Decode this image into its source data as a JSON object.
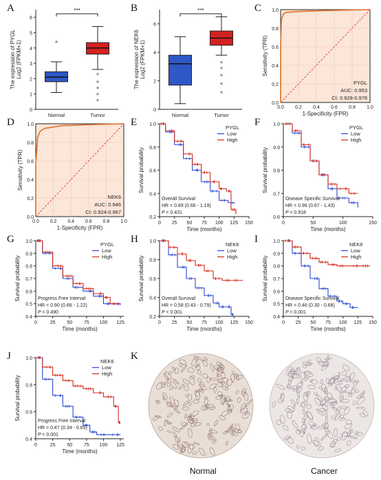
{
  "panel_letters": [
    "A",
    "B",
    "C",
    "D",
    "E",
    "F",
    "G",
    "H",
    "I",
    "J",
    "K"
  ],
  "colors": {
    "normal": "#2f57c6",
    "tumor": "#d42121",
    "roc": "#e07b39",
    "diag": "#e04a4a",
    "roc_bg": "#fbe6d9",
    "low": "#2a46d4",
    "high": "#d42a1a"
  },
  "chart_data": [
    {
      "panel": "A",
      "type": "box",
      "ylabel": "The expression of PYGL",
      "ylabel2": "Log2 (FPKM+1)",
      "categories": [
        "Normal",
        "Tumor"
      ],
      "ylim": [
        0,
        6.5
      ],
      "yticks": [
        "0",
        "1",
        "2",
        "3",
        "4",
        "5",
        "6"
      ],
      "signif": "***",
      "boxes": [
        {
          "q1": 1.8,
          "median": 2.1,
          "q3": 2.45,
          "low": 1.1,
          "high": 3.1,
          "outliers": [
            4.4
          ]
        },
        {
          "q1": 3.6,
          "median": 4.0,
          "q3": 4.35,
          "low": 2.6,
          "high": 5.4,
          "outliers": [
            0.6,
            1.0,
            1.4,
            1.8,
            2.3
          ]
        }
      ]
    },
    {
      "panel": "B",
      "type": "box",
      "ylabel": "The expression of NEK6",
      "ylabel2": "Log2 (FPKM+1)",
      "categories": [
        "Normal",
        "Tumor"
      ],
      "ylim": [
        0,
        7
      ],
      "yticks": [
        "0",
        "2",
        "4",
        "6"
      ],
      "signif": "***",
      "boxes": [
        {
          "q1": 1.7,
          "median": 3.2,
          "q3": 3.8,
          "low": 0.4,
          "high": 5.1,
          "outliers": []
        },
        {
          "q1": 4.5,
          "median": 5.0,
          "q3": 5.5,
          "low": 3.8,
          "high": 6.5,
          "outliers": [
            1.2,
            1.8,
            2.4,
            2.9,
            3.3
          ]
        }
      ]
    },
    {
      "panel": "C",
      "type": "roc",
      "name": "PYGL",
      "auc": "AUC: 0.953",
      "ci": "CI: 0.928-0.978",
      "xlabel": "1-Specificity (FPR)",
      "ylabel": "Sensitivity (TPR)",
      "ticks": [
        "0.0",
        "0.2",
        "0.4",
        "0.6",
        "0.8",
        "1.0"
      ],
      "points": [
        [
          0,
          0
        ],
        [
          0,
          0.6
        ],
        [
          0.01,
          0.9
        ],
        [
          0.03,
          0.95
        ],
        [
          0.06,
          0.97
        ],
        [
          0.2,
          0.98
        ],
        [
          0.5,
          0.99
        ],
        [
          1,
          1
        ]
      ]
    },
    {
      "panel": "D",
      "type": "roc",
      "name": "NEK6",
      "auc": "AUC: 0.946",
      "ci": "CI: 0.924-0.967",
      "xlabel": "1-Specificity (FPR)",
      "ylabel": "Sensitivity (TPR)",
      "ticks": [
        "0.0",
        "0.2",
        "0.4",
        "0.6",
        "0.8",
        "1.0"
      ],
      "points": [
        [
          0,
          0
        ],
        [
          0,
          0.55
        ],
        [
          0.02,
          0.85
        ],
        [
          0.05,
          0.92
        ],
        [
          0.1,
          0.95
        ],
        [
          0.3,
          0.98
        ],
        [
          0.6,
          0.99
        ],
        [
          1,
          1
        ]
      ]
    },
    {
      "panel": "E",
      "type": "km",
      "gene": "PYGL",
      "endpoint": "Overall Survival",
      "hr": "HR = 0.89 (0.66 - 1.19)",
      "p": "0.431",
      "p_prefix": "= ",
      "xlabel": "Time (months)",
      "ylabel": "Survival probability",
      "xmax": 150,
      "ymin": 0.2,
      "xticks": [
        "0",
        "25",
        "50",
        "75",
        "100",
        "125",
        "150"
      ],
      "yticks": [
        "0.2",
        "0.4",
        "0.6",
        "0.8",
        "1.0"
      ],
      "series": [
        {
          "name": "Low",
          "points": [
            [
              0,
              1
            ],
            [
              10,
              0.93
            ],
            [
              25,
              0.82
            ],
            [
              40,
              0.7
            ],
            [
              55,
              0.6
            ],
            [
              70,
              0.5
            ],
            [
              85,
              0.42
            ],
            [
              100,
              0.34
            ],
            [
              115,
              0.32
            ],
            [
              125,
              0.31
            ]
          ]
        },
        {
          "name": "High",
          "points": [
            [
              0,
              1
            ],
            [
              10,
              0.94
            ],
            [
              25,
              0.85
            ],
            [
              40,
              0.74
            ],
            [
              55,
              0.65
            ],
            [
              70,
              0.58
            ],
            [
              85,
              0.5
            ],
            [
              100,
              0.44
            ],
            [
              112,
              0.42
            ],
            [
              120,
              0.26
            ],
            [
              128,
              0.22
            ]
          ]
        }
      ]
    },
    {
      "panel": "F",
      "type": "km",
      "gene": "PYGL",
      "endpoint": "Disease Specific Survival",
      "hr": "HR = 0.98 (0.67 - 1.43)",
      "p": "0.918",
      "p_prefix": "= ",
      "xlabel": "Time (months)",
      "ylabel": "Survival probability",
      "xmax": 150,
      "ymin": 0.6,
      "xticks": [
        "0",
        "50",
        "100",
        "150"
      ],
      "yticks": [
        "0.6",
        "0.7",
        "0.8",
        "0.9",
        "1.0"
      ],
      "series": [
        {
          "name": "Low",
          "points": [
            [
              0,
              1
            ],
            [
              15,
              0.96
            ],
            [
              30,
              0.9
            ],
            [
              45,
              0.84
            ],
            [
              60,
              0.78
            ],
            [
              75,
              0.72
            ],
            [
              90,
              0.68
            ],
            [
              110,
              0.66
            ],
            [
              125,
              0.64
            ]
          ]
        },
        {
          "name": "High",
          "points": [
            [
              0,
              1
            ],
            [
              15,
              0.97
            ],
            [
              30,
              0.91
            ],
            [
              45,
              0.84
            ],
            [
              60,
              0.78
            ],
            [
              75,
              0.74
            ],
            [
              90,
              0.72
            ],
            [
              110,
              0.7
            ],
            [
              125,
              0.7
            ]
          ]
        }
      ]
    },
    {
      "panel": "G",
      "type": "km",
      "gene": "PYGL",
      "endpoint": "Progress Free Interval",
      "hr": "HR = 0.90 (0.66 - 1.22)",
      "p": "0.490",
      "p_prefix": "= ",
      "xlabel": "Time (months)",
      "ylabel": "Survival probability",
      "xmax": 130,
      "ymin": 0.4,
      "xticks": [
        "0",
        "25",
        "50",
        "75",
        "100",
        "125"
      ],
      "yticks": [
        "0.4",
        "0.5",
        "0.6",
        "0.7",
        "0.8",
        "0.9",
        "1.0"
      ],
      "series": [
        {
          "name": "Low",
          "points": [
            [
              0,
              1
            ],
            [
              10,
              0.9
            ],
            [
              25,
              0.78
            ],
            [
              40,
              0.7
            ],
            [
              55,
              0.63
            ],
            [
              70,
              0.6
            ],
            [
              85,
              0.56
            ],
            [
              100,
              0.5
            ],
            [
              115,
              0.5
            ],
            [
              125,
              0.49
            ]
          ]
        },
        {
          "name": "High",
          "points": [
            [
              0,
              1
            ],
            [
              10,
              0.91
            ],
            [
              25,
              0.8
            ],
            [
              40,
              0.72
            ],
            [
              55,
              0.66
            ],
            [
              70,
              0.62
            ],
            [
              85,
              0.58
            ],
            [
              100,
              0.55
            ],
            [
              110,
              0.5
            ],
            [
              125,
              0.5
            ]
          ]
        }
      ]
    },
    {
      "panel": "H",
      "type": "km",
      "gene": "NEK6",
      "endpoint": "Overall Survival",
      "hr": "HR = 0.58 (0.43 - 0.79)",
      "p": "0.001",
      "p_prefix": "< ",
      "xlabel": "Time (months)",
      "ylabel": "Survival probability",
      "xmax": 150,
      "ymin": 0.2,
      "xticks": [
        "0",
        "25",
        "50",
        "75",
        "100",
        "125",
        "150"
      ],
      "yticks": [
        "0.2",
        "0.4",
        "0.6",
        "0.8",
        "1.0"
      ],
      "series": [
        {
          "name": "Low",
          "points": [
            [
              0,
              1
            ],
            [
              15,
              0.85
            ],
            [
              30,
              0.72
            ],
            [
              45,
              0.6
            ],
            [
              60,
              0.5
            ],
            [
              75,
              0.42
            ],
            [
              90,
              0.34
            ],
            [
              100,
              0.3
            ],
            [
              112,
              0.3
            ],
            [
              120,
              0.22
            ],
            [
              125,
              0.22
            ]
          ]
        },
        {
          "name": "High",
          "points": [
            [
              0,
              1
            ],
            [
              15,
              0.93
            ],
            [
              30,
              0.86
            ],
            [
              45,
              0.79
            ],
            [
              60,
              0.74
            ],
            [
              75,
              0.68
            ],
            [
              90,
              0.6
            ],
            [
              105,
              0.58
            ],
            [
              120,
              0.58
            ],
            [
              140,
              0.58
            ]
          ]
        }
      ]
    },
    {
      "panel": "I",
      "type": "km",
      "gene": "NEK6",
      "endpoint": "Disease Specific Survival",
      "hr": "HR = 0.46 (0.30 - 0.68)",
      "p": "0.001",
      "p_prefix": "< ",
      "xlabel": "Time (months)",
      "ylabel": "Survival probability",
      "xmax": 150,
      "ymin": 0.4,
      "xticks": [
        "0",
        "25",
        "50",
        "75",
        "100",
        "125",
        "150"
      ],
      "yticks": [
        "0.4",
        "0.5",
        "0.6",
        "0.7",
        "0.8",
        "0.9",
        "1.0"
      ],
      "series": [
        {
          "name": "Low",
          "points": [
            [
              0,
              1
            ],
            [
              15,
              0.9
            ],
            [
              30,
              0.8
            ],
            [
              45,
              0.7
            ],
            [
              60,
              0.62
            ],
            [
              75,
              0.56
            ],
            [
              90,
              0.52
            ],
            [
              100,
              0.5
            ],
            [
              112,
              0.47
            ],
            [
              125,
              0.47
            ]
          ]
        },
        {
          "name": "High",
          "points": [
            [
              0,
              1
            ],
            [
              15,
              0.95
            ],
            [
              30,
              0.9
            ],
            [
              45,
              0.86
            ],
            [
              60,
              0.83
            ],
            [
              75,
              0.81
            ],
            [
              90,
              0.8
            ],
            [
              110,
              0.8
            ],
            [
              130,
              0.8
            ],
            [
              145,
              0.8
            ]
          ]
        }
      ]
    },
    {
      "panel": "J",
      "type": "km",
      "gene": "NEK6",
      "endpoint": "Progress Free Interval",
      "hr": "HR = 0.47 (0.34 - 0.65)",
      "p": "0.001",
      "p_prefix": "< ",
      "xlabel": "Time (months)",
      "ylabel": "Survival probability",
      "xmax": 130,
      "ymin": 0.4,
      "xticks": [
        "0",
        "25",
        "50",
        "75",
        "100",
        "125"
      ],
      "yticks": [
        "0.4",
        "0.6",
        "0.8",
        "1.0"
      ],
      "series": [
        {
          "name": "Low",
          "points": [
            [
              0,
              1
            ],
            [
              10,
              0.84
            ],
            [
              25,
              0.72
            ],
            [
              40,
              0.64
            ],
            [
              55,
              0.56
            ],
            [
              70,
              0.5
            ],
            [
              80,
              0.45
            ],
            [
              90,
              0.43
            ],
            [
              110,
              0.43
            ],
            [
              125,
              0.43
            ]
          ]
        },
        {
          "name": "High",
          "points": [
            [
              0,
              1
            ],
            [
              10,
              0.93
            ],
            [
              25,
              0.87
            ],
            [
              40,
              0.83
            ],
            [
              55,
              0.79
            ],
            [
              70,
              0.77
            ],
            [
              85,
              0.74
            ],
            [
              100,
              0.71
            ],
            [
              115,
              0.64
            ],
            [
              122,
              0.52
            ],
            [
              125,
              0.52
            ]
          ]
        }
      ]
    }
  ],
  "ihc": {
    "captions": [
      "Normal",
      "Cancer"
    ]
  }
}
